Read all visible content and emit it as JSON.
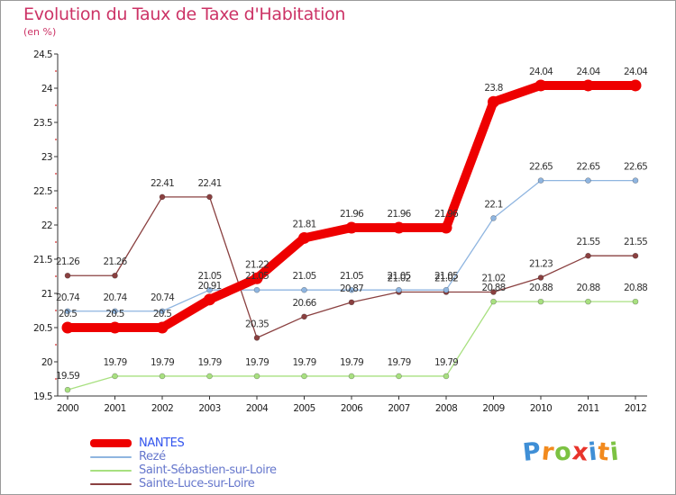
{
  "title": "Evolution du Taux de Taxe d'Habitation",
  "subtitle": "(en %)",
  "logo": {
    "text": "Proxiti",
    "letters": [
      {
        "ch": "P",
        "color": "#3f8fd6"
      },
      {
        "ch": "r",
        "color": "#f28a1e"
      },
      {
        "ch": "o",
        "color": "#7cc242"
      },
      {
        "ch": "x",
        "color": "#e8342b"
      },
      {
        "ch": "i",
        "color": "#3f8fd6"
      },
      {
        "ch": "t",
        "color": "#f28a1e"
      },
      {
        "ch": "i",
        "color": "#7cc242"
      }
    ]
  },
  "chart_data": {
    "type": "line",
    "title": "Evolution du Taux de Taxe d'Habitation",
    "subtitle": "(en %)",
    "x": [
      "2000",
      "2001",
      "2002",
      "2003",
      "2004",
      "2005",
      "2006",
      "2007",
      "2008",
      "2009",
      "2010",
      "2011",
      "2012"
    ],
    "ylim": [
      19.5,
      24.5
    ],
    "yticks": [
      "19.5",
      "20",
      "20.5",
      "21",
      "21.5",
      "22",
      "22.5",
      "23",
      "23.5",
      "24",
      "24.5"
    ],
    "grid": false,
    "legend_position": "bottom-left",
    "series": [
      {
        "name": "NANTES",
        "color": "#ee0000",
        "values": [
          20.5,
          20.5,
          20.5,
          20.91,
          21.22,
          21.81,
          21.96,
          21.96,
          21.96,
          23.8,
          24.04,
          24.04,
          24.04
        ],
        "labels": [
          "20.5",
          "20.5",
          "20.5",
          "20.91",
          "21.22",
          "21.81",
          "21.96",
          "21.96",
          "21.96",
          "23.8",
          "24.04",
          "24.04",
          "24.04"
        ]
      },
      {
        "name": "Rezé",
        "color": "#8fb5e0",
        "values": [
          20.74,
          20.74,
          20.74,
          21.05,
          21.05,
          21.05,
          21.05,
          21.05,
          21.05,
          22.1,
          22.65,
          22.65,
          22.65
        ],
        "labels": [
          "20.74",
          "20.74",
          "20.74",
          "21.05",
          "21.05",
          "21.05",
          "21.05",
          "21.05",
          "21.05",
          "22.1",
          "22.65",
          "22.65",
          "22.65"
        ]
      },
      {
        "name": "Saint-Sébastien-sur-Loire",
        "color": "#a8e080",
        "values": [
          19.59,
          19.79,
          19.79,
          19.79,
          19.79,
          19.79,
          19.79,
          19.79,
          19.79,
          20.88,
          20.88,
          20.88,
          20.88
        ],
        "labels": [
          "19.59",
          "19.79",
          "19.79",
          "19.79",
          "19.79",
          "19.79",
          "19.79",
          "19.79",
          "19.79",
          "20.88",
          "20.88",
          "20.88",
          "20.88"
        ]
      },
      {
        "name": "Sainte-Luce-sur-Loire",
        "color": "#8a4040",
        "values": [
          21.26,
          21.26,
          22.41,
          22.41,
          20.35,
          20.66,
          20.87,
          21.02,
          21.02,
          21.02,
          21.23,
          21.55,
          21.55
        ],
        "labels": [
          "21.26",
          "21.26",
          "22.41",
          "22.41",
          "20.35",
          "20.66",
          "20.87",
          "21.02",
          "21.02",
          "21.02",
          "21.23",
          "21.55",
          "21.55"
        ]
      }
    ]
  }
}
